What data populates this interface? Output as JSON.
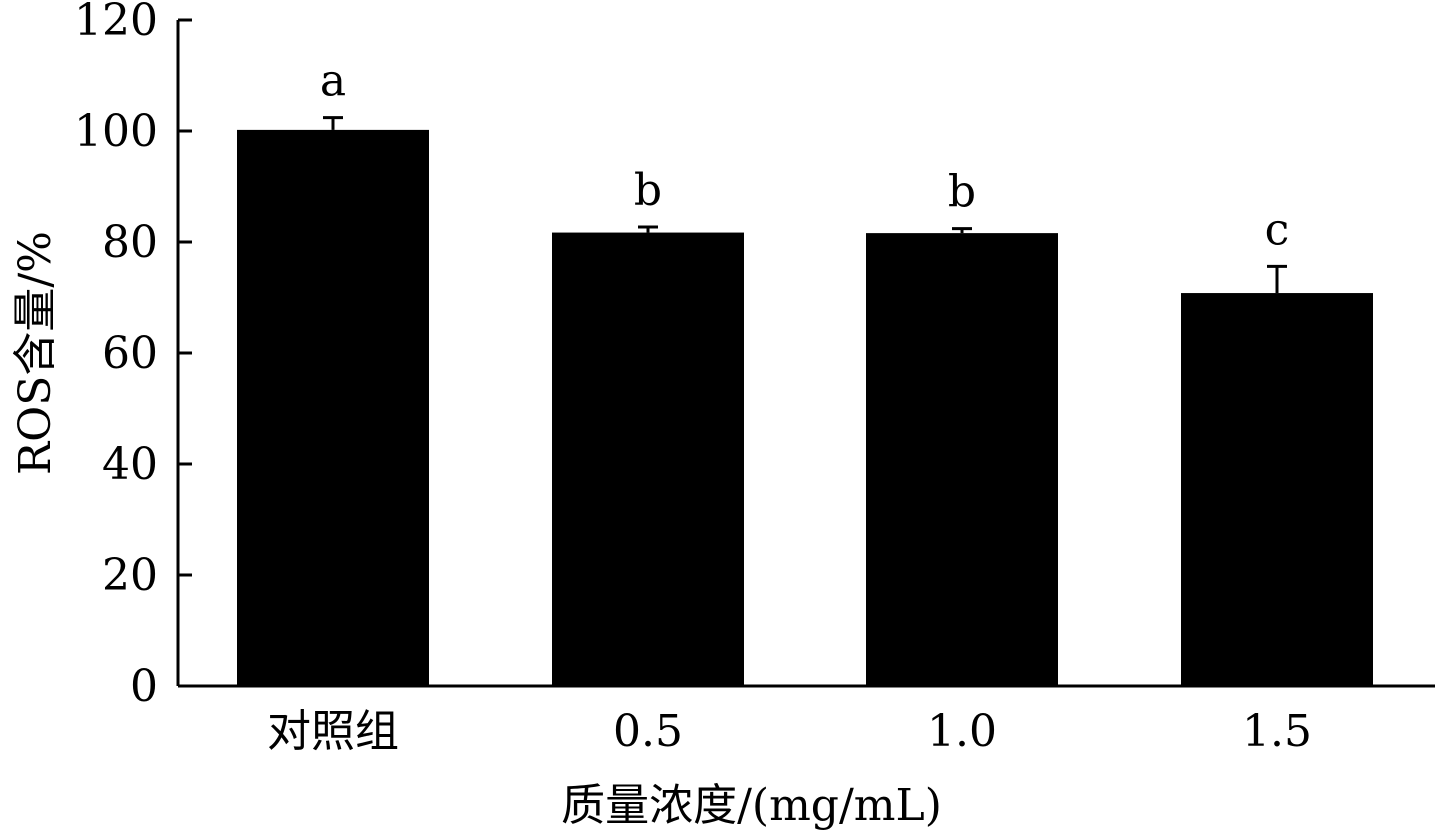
{
  "chart_data": {
    "type": "bar",
    "title": "",
    "xlabel": "质量浓度/(mg/mL)",
    "ylabel": "ROS含量/%",
    "categories": [
      "对照组",
      "0.5",
      "1.0",
      "1.5"
    ],
    "values": [
      100.2,
      81.7,
      81.6,
      70.8
    ],
    "errors": [
      2.2,
      1.0,
      0.8,
      4.8
    ],
    "significance_labels": [
      "a",
      "b",
      "b",
      "c"
    ],
    "ylim": [
      0,
      120
    ],
    "yticks": [
      0,
      20,
      40,
      60,
      80,
      100,
      120
    ],
    "yticks_labels": [
      "0",
      "20",
      "40",
      "60",
      "80",
      "100",
      "120"
    ],
    "grid": false,
    "bar_color": "#000000"
  }
}
